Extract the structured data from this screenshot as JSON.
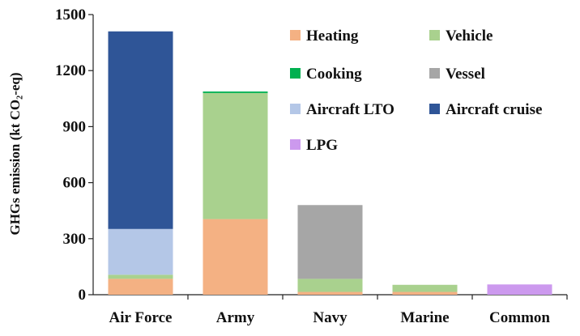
{
  "chart_data": {
    "type": "bar",
    "stacked": true,
    "categories": [
      "Air Force",
      "Army",
      "Navy",
      "Marine",
      "Common"
    ],
    "ylabel": "GHGs emission (kt CO₂-eq)",
    "ylim": [
      0,
      1500
    ],
    "yticks": [
      "0",
      "300",
      "600",
      "900",
      "1200",
      "1500"
    ],
    "grid": false,
    "legend_position": "top-right",
    "series": [
      {
        "name": "Heating",
        "color": "#f4b183",
        "values": [
          85,
          405,
          15,
          15,
          0
        ]
      },
      {
        "name": "Vehicle",
        "color": "#a9d18e",
        "values": [
          22,
          675,
          70,
          38,
          0
        ]
      },
      {
        "name": "Cooking",
        "color": "#00b050",
        "values": [
          0,
          8,
          0,
          0,
          0
        ]
      },
      {
        "name": "Vessel",
        "color": "#a6a6a6",
        "values": [
          0,
          0,
          395,
          0,
          0
        ]
      },
      {
        "name": "Aircraft LTO",
        "color": "#b4c7e7",
        "values": [
          245,
          0,
          0,
          0,
          0
        ]
      },
      {
        "name": "Aircraft cruise",
        "color": "#2f5597",
        "values": [
          1058,
          0,
          0,
          0,
          0
        ]
      },
      {
        "name": "LPG",
        "color": "#cc99ee",
        "values": [
          0,
          0,
          0,
          0,
          55
        ]
      }
    ]
  }
}
